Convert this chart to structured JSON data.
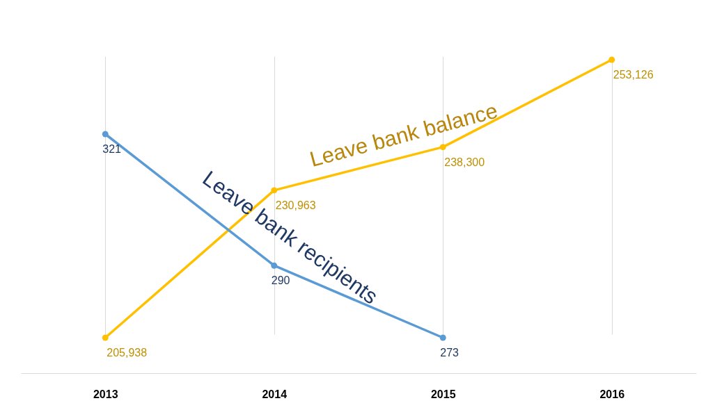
{
  "chart_data": {
    "type": "line",
    "categories": [
      "2013",
      "2014",
      "2015",
      "2016"
    ],
    "series": [
      {
        "name": "Leave bank balance",
        "color": "#ffc000",
        "values": [
          205938,
          230963,
          238300,
          253126
        ],
        "value_labels": [
          "205,938",
          "230,963",
          "238,300",
          "253,126"
        ]
      },
      {
        "name": "Leave bank recipients",
        "color": "#5b9bd5",
        "axis": "y2",
        "values": [
          321,
          290,
          273,
          null
        ],
        "value_labels": [
          "321",
          "290",
          "273",
          null
        ]
      }
    ],
    "tick_labels": "x",
    "grid": "x",
    "marker": "circle",
    "line_style": "solid"
  }
}
